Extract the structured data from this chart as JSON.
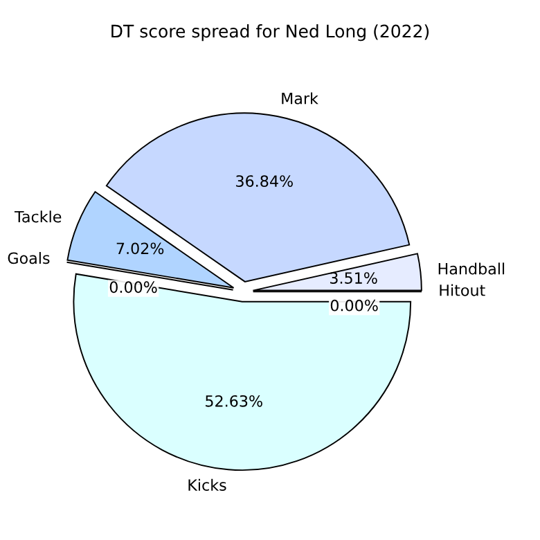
{
  "chart_data": {
    "type": "pie",
    "title": "DT score spread for Ned Long (2022)",
    "categories": [
      "Handball",
      "Mark",
      "Tackle",
      "Goals",
      "Kicks",
      "Hitout"
    ],
    "values": [
      3.51,
      36.84,
      7.02,
      0.0,
      52.63,
      0.0
    ],
    "colors": [
      "#e6ecff",
      "#c6d8ff",
      "#b0d4ff",
      "#c6d8ff",
      "#daffff",
      "#e6ecff"
    ],
    "value_labels": [
      "3.51%",
      "36.84%",
      "7.02%",
      "0.00%",
      "52.63%",
      "0.00%"
    ]
  }
}
